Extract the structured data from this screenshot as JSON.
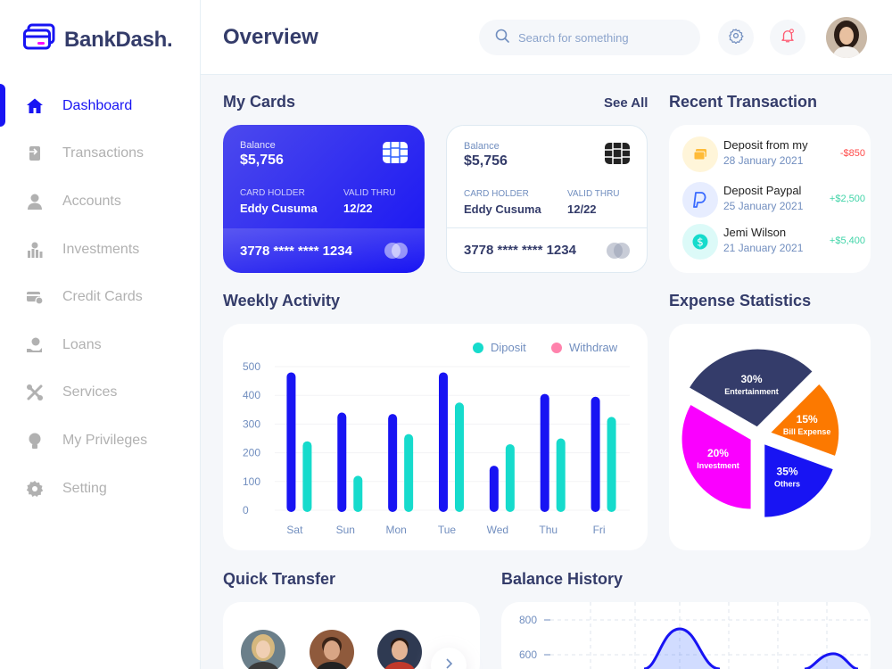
{
  "app": {
    "name": "BankDash."
  },
  "sidebar": {
    "items": [
      {
        "label": "Dashboard",
        "icon": "home-icon",
        "active": true
      },
      {
        "label": "Transactions",
        "icon": "transfer-icon"
      },
      {
        "label": "Accounts",
        "icon": "user-icon"
      },
      {
        "label": "Investments",
        "icon": "investment-icon"
      },
      {
        "label": "Credit Cards",
        "icon": "credit-card-icon"
      },
      {
        "label": "Loans",
        "icon": "loan-icon"
      },
      {
        "label": "Services",
        "icon": "service-icon"
      },
      {
        "label": "My Privileges",
        "icon": "privilege-icon"
      },
      {
        "label": "Setting",
        "icon": "gear-icon"
      }
    ]
  },
  "header": {
    "title": "Overview",
    "search_placeholder": "Search for something"
  },
  "my_cards": {
    "title": "My Cards",
    "see_all": "See All",
    "cards": [
      {
        "balance_label": "Balance",
        "balance": "$5,756",
        "holder_label": "CARD HOLDER",
        "holder": "Eddy Cusuma",
        "valid_label": "VALID THRU",
        "valid": "12/22",
        "number": "3778 **** **** 1234",
        "style": "blue"
      },
      {
        "balance_label": "Balance",
        "balance": "$5,756",
        "holder_label": "CARD HOLDER",
        "holder": "Eddy Cusuma",
        "valid_label": "VALID THRU",
        "valid": "12/22",
        "number": "3778 **** **** 1234",
        "style": "white"
      }
    ]
  },
  "recent_transactions": {
    "title": "Recent Transaction",
    "items": [
      {
        "title": "Deposit from my",
        "date": "28 January 2021",
        "amount": "-$850",
        "color": "#ff4b4a",
        "icon": "card-icon",
        "bg": "#fff5d9"
      },
      {
        "title": "Deposit Paypal",
        "date": "25 January 2021",
        "amount": "+$2,500",
        "color": "#41d4a8",
        "icon": "paypal-icon",
        "bg": "#e7edff"
      },
      {
        "title": "Jemi Wilson",
        "date": "21 January 2021",
        "amount": "+$5,400",
        "color": "#41d4a8",
        "icon": "dollar-icon",
        "bg": "#dcfaf8"
      }
    ]
  },
  "weekly_activity": {
    "title": "Weekly Activity",
    "legend": {
      "deposit": "Diposit",
      "withdraw": "Withdraw"
    },
    "colors": {
      "deposit": "#16dbcc",
      "withdraw": "#1814f3",
      "withdraw_legend": "#ff82ac"
    }
  },
  "expense_statistics": {
    "title": "Expense Statistics"
  },
  "quick_transfer": {
    "title": "Quick Transfer"
  },
  "balance_history": {
    "title": "Balance History"
  },
  "chart_data": [
    {
      "type": "bar",
      "title": "Weekly Activity",
      "categories": [
        "Sat",
        "Sun",
        "Mon",
        "Tue",
        "Wed",
        "Thu",
        "Fri"
      ],
      "ylim": [
        0,
        500
      ],
      "yticks": [
        0,
        100,
        200,
        300,
        400,
        500
      ],
      "series": [
        {
          "name": "Withdraw",
          "color": "#1814f3",
          "values": [
            480,
            340,
            335,
            480,
            155,
            405,
            395
          ]
        },
        {
          "name": "Diposit",
          "color": "#16dbcc",
          "values": [
            240,
            120,
            265,
            375,
            230,
            250,
            325
          ]
        }
      ],
      "grid": true,
      "legend": "top-right"
    },
    {
      "type": "pie",
      "title": "Expense Statistics",
      "slices": [
        {
          "label": "Entertainment",
          "value": 30,
          "color": "#343c6a"
        },
        {
          "label": "Bill Expense",
          "value": 15,
          "color": "#fc7900"
        },
        {
          "label": "Others",
          "value": 35,
          "color": "#1814f3"
        },
        {
          "label": "Investment",
          "value": 20,
          "color": "#fa00ff"
        }
      ]
    },
    {
      "type": "area",
      "title": "Balance History",
      "yticks": [
        600,
        800
      ],
      "grid": true
    }
  ]
}
